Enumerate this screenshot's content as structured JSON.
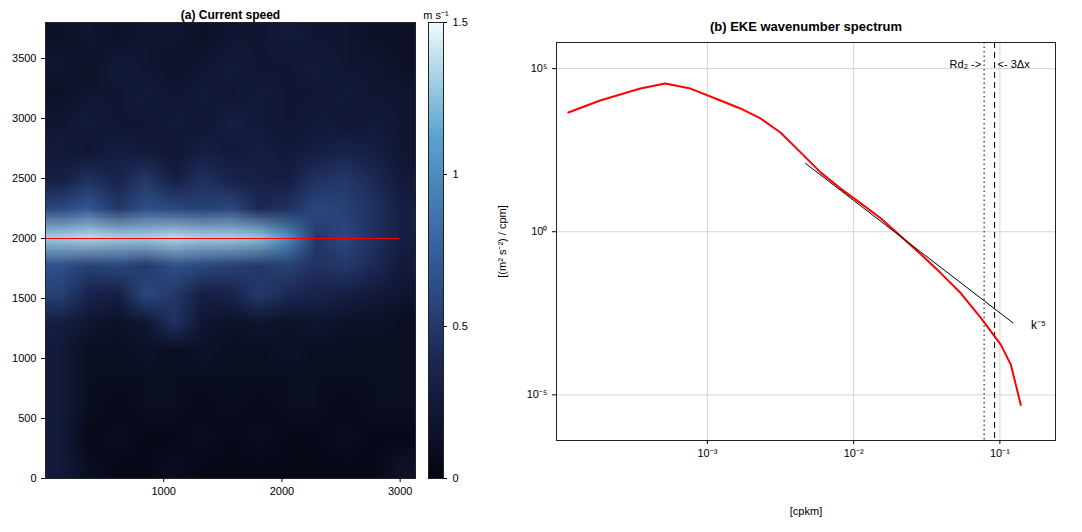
{
  "chart_data": [
    {
      "type": "heatmap",
      "title": "(a) Current speed",
      "xlim": [
        0,
        3130
      ],
      "ylim": [
        0,
        3800
      ],
      "xticks": [
        1000,
        2000,
        3000
      ],
      "yticks": [
        0,
        500,
        1000,
        1500,
        2000,
        2500,
        3000,
        3500
      ],
      "cells": [
        [
          0.15,
          0.2,
          0.15,
          0.2,
          0.2,
          0.15,
          0.2,
          0.2,
          0.25,
          0.2,
          0.2,
          0.15,
          0.15
        ],
        [
          0.2,
          0.15,
          0.25,
          0.2,
          0.15,
          0.2,
          0.25,
          0.2,
          0.2,
          0.25,
          0.2,
          0.2,
          0.15
        ],
        [
          0.15,
          0.2,
          0.2,
          0.25,
          0.2,
          0.25,
          0.2,
          0.25,
          0.2,
          0.2,
          0.25,
          0.2,
          0.2
        ],
        [
          0.2,
          0.25,
          0.2,
          0.2,
          0.25,
          0.2,
          0.3,
          0.25,
          0.2,
          0.25,
          0.2,
          0.25,
          0.2
        ],
        [
          0.25,
          0.2,
          0.3,
          0.25,
          0.2,
          0.3,
          0.25,
          0.3,
          0.25,
          0.3,
          0.35,
          0.3,
          0.2
        ],
        [
          0.3,
          0.45,
          0.35,
          0.5,
          0.3,
          0.45,
          0.35,
          0.3,
          0.3,
          0.45,
          0.5,
          0.4,
          0.25
        ],
        [
          0.6,
          0.7,
          0.5,
          0.65,
          0.6,
          0.55,
          0.6,
          0.4,
          0.45,
          0.6,
          0.55,
          0.45,
          0.3
        ],
        [
          1.3,
          1.35,
          1.3,
          1.3,
          1.35,
          1.3,
          1.3,
          1.25,
          1.0,
          0.5,
          0.6,
          0.45,
          0.3
        ],
        [
          0.65,
          0.55,
          0.6,
          0.5,
          0.65,
          0.6,
          0.55,
          0.5,
          0.55,
          0.45,
          0.5,
          0.4,
          0.25
        ],
        [
          0.55,
          0.35,
          0.3,
          0.6,
          0.5,
          0.3,
          0.35,
          0.5,
          0.4,
          0.35,
          0.3,
          0.25,
          0.2
        ],
        [
          0.3,
          0.2,
          0.15,
          0.2,
          0.45,
          0.2,
          0.15,
          0.2,
          0.15,
          0.2,
          0.15,
          0.15,
          0.1
        ],
        [
          0.25,
          0.1,
          0.1,
          0.15,
          0.1,
          0.15,
          0.1,
          0.1,
          0.15,
          0.1,
          0.1,
          0.1,
          0.1
        ],
        [
          0.25,
          0.1,
          0.1,
          0.1,
          0.1,
          0.1,
          0.1,
          0.1,
          0.1,
          0.1,
          0.1,
          0.1,
          0.1
        ],
        [
          0.25,
          0.1,
          0.05,
          0.1,
          0.1,
          0.05,
          0.1,
          0.05,
          0.1,
          0.1,
          0.05,
          0.1,
          0.1
        ],
        [
          0.25,
          0.05,
          0.1,
          0.05,
          0.05,
          0.1,
          0.05,
          0.1,
          0.05,
          0.05,
          0.1,
          0.05,
          0.05
        ],
        [
          0.25,
          0.1,
          0.05,
          0.05,
          0.1,
          0.05,
          0.05,
          0.05,
          0.05,
          0.05,
          0.05,
          0.05,
          0.15
        ]
      ],
      "colorbar": {
        "label": "m s⁻¹",
        "lim": [
          0,
          1.5
        ],
        "ticks": [
          0,
          0.5,
          1,
          1.5
        ]
      },
      "section": {
        "x": [
          0,
          2990
        ],
        "y": [
          2000,
          2000
        ],
        "color": "#ff0000"
      }
    },
    {
      "type": "line",
      "title": "(b) EKE wavenumber spectrum",
      "x_label": "[cpkm]",
      "y_label": "[(m² s⁻²) / cpm]",
      "log": true,
      "grid": true,
      "xlim": [
        9.3e-05,
        0.24
      ],
      "ylim": [
        4e-07,
        630000
      ],
      "xticks": [
        {
          "value": 0.001,
          "label": "10⁻³"
        },
        {
          "value": 0.01,
          "label": "10⁻²"
        },
        {
          "value": 0.1,
          "label": "10⁻¹"
        }
      ],
      "yticks": [
        {
          "value": 1e-05,
          "label": "10⁻⁵"
        },
        {
          "value": 1,
          "label": "10⁰"
        },
        {
          "value": 100000,
          "label": "10⁵"
        }
      ],
      "x": [
        0.000112,
        0.000185,
        0.000348,
        0.000515,
        0.000766,
        0.00123,
        0.00168,
        0.00231,
        0.00316,
        0.00434,
        0.00594,
        0.00815,
        0.0112,
        0.0153,
        0.021,
        0.0288,
        0.0394,
        0.0541,
        0.0741,
        0.1016,
        0.119,
        0.139
      ],
      "values": [
        4500,
        10500,
        24400,
        34800,
        24400,
        10500,
        6000,
        2960,
        1100,
        270,
        66,
        21,
        7.4,
        2.6,
        0.73,
        0.205,
        0.054,
        0.013,
        0.0023,
        0.00034,
        8.3e-05,
        4.9e-06
      ],
      "color": "#ff0000",
      "slope_line": {
        "label": "k⁻⁵",
        "x": [
          0.00469,
          0.123
        ],
        "y": [
          124,
          0.0016
        ],
        "color": "#000000",
        "label_x": 0.163,
        "label_y": 0.0014
      },
      "markers": [
        {
          "x": 0.078,
          "label": "Rd₂ ->",
          "line_style": "dotted",
          "label_y": 130000
        },
        {
          "x": 0.092,
          "label": "<- 3Δx",
          "line_style": "dashed",
          "label_y": 130000
        }
      ]
    }
  ]
}
